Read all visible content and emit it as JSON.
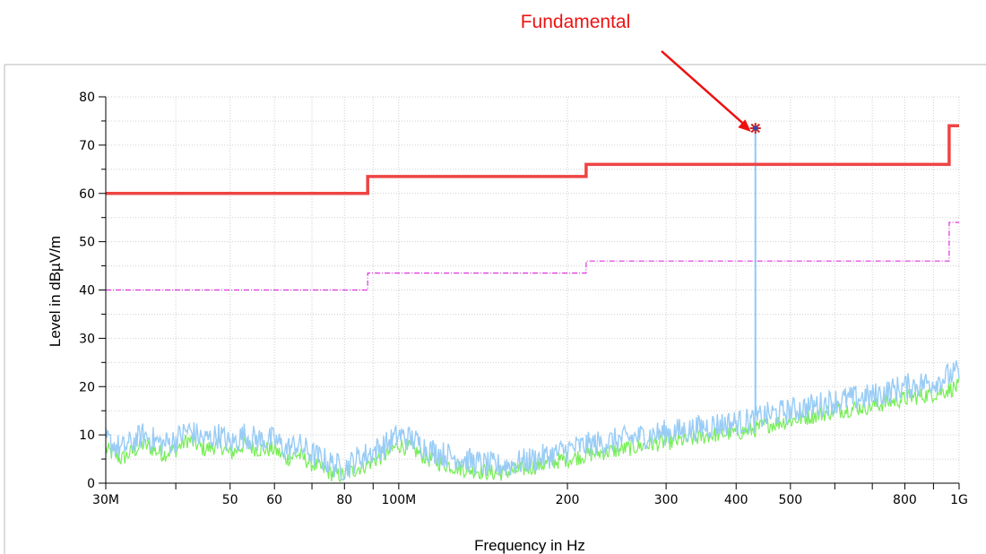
{
  "chart_data": {
    "type": "line",
    "xlabel": "Frequency in Hz",
    "ylabel": "Level in dBµV/m",
    "xscale": "log",
    "xlim": [
      30000000,
      1000000000
    ],
    "ylim": [
      0,
      80
    ],
    "grid": true,
    "y_ticks": [
      0,
      10,
      20,
      30,
      40,
      50,
      60,
      70,
      80
    ],
    "x_ticks": [
      {
        "value": 30000000,
        "label": "30M"
      },
      {
        "value": 50000000,
        "label": "50"
      },
      {
        "value": 60000000,
        "label": "60"
      },
      {
        "value": 80000000,
        "label": "80"
      },
      {
        "value": 100000000,
        "label": "100M"
      },
      {
        "value": 200000000,
        "label": "200"
      },
      {
        "value": 300000000,
        "label": "300"
      },
      {
        "value": 400000000,
        "label": "400"
      },
      {
        "value": 500000000,
        "label": "500"
      },
      {
        "value": 800000000,
        "label": "800"
      },
      {
        "value": 1000000000,
        "label": "1G"
      }
    ],
    "series": [
      {
        "role": "limit",
        "color": "#ee4444",
        "style": "solid-thick",
        "x": [
          30000000,
          88000000,
          88000000,
          216000000,
          216000000,
          960000000,
          960000000,
          1000000000
        ],
        "y": [
          60,
          60,
          63.5,
          63.5,
          66,
          66,
          74,
          74
        ]
      },
      {
        "role": "limit-dashed",
        "color": "#dd33dd",
        "style": "dashdot",
        "x": [
          30000000,
          88000000,
          88000000,
          216000000,
          216000000,
          960000000,
          960000000,
          1000000000
        ],
        "y": [
          40,
          40,
          43.5,
          43.5,
          46,
          46,
          54,
          54
        ]
      },
      {
        "role": "trace-peak",
        "color": "#99ccf5",
        "x": [
          30000000,
          32000000,
          35000000,
          38000000,
          40000000,
          42000000,
          45000000,
          48000000,
          50000000,
          53000000,
          56000000,
          60000000,
          63000000,
          66000000,
          70000000,
          73000000,
          76000000,
          80000000,
          84000000,
          88000000,
          95000000,
          100000000,
          106000000,
          113000000,
          120000000,
          130000000,
          140000000,
          150000000,
          160000000,
          175000000,
          190000000,
          200000000,
          220000000,
          250000000,
          280000000,
          300000000,
          330000000,
          360000000,
          400000000,
          430000000,
          450000000,
          500000000,
          550000000,
          600000000,
          700000000,
          800000000,
          900000000,
          1000000000
        ],
        "y": [
          9,
          7,
          10,
          8,
          9,
          11,
          9,
          10,
          8,
          10,
          9,
          9,
          7,
          8,
          6,
          5,
          4,
          3,
          5,
          6,
          8,
          10,
          9,
          7,
          6,
          5,
          4,
          3.5,
          4,
          5,
          6,
          7,
          8,
          9,
          10,
          10.5,
          11,
          12,
          12.5,
          13,
          14,
          15,
          16,
          17,
          18,
          20,
          21,
          23
        ]
      },
      {
        "role": "trace-average",
        "color": "#77ee55",
        "x": [
          30000000,
          32000000,
          35000000,
          38000000,
          40000000,
          42000000,
          45000000,
          48000000,
          50000000,
          53000000,
          56000000,
          60000000,
          63000000,
          66000000,
          70000000,
          73000000,
          76000000,
          80000000,
          84000000,
          88000000,
          95000000,
          100000000,
          106000000,
          113000000,
          120000000,
          130000000,
          140000000,
          150000000,
          160000000,
          175000000,
          190000000,
          200000000,
          220000000,
          250000000,
          280000000,
          300000000,
          330000000,
          360000000,
          400000000,
          430000000,
          450000000,
          500000000,
          550000000,
          600000000,
          700000000,
          800000000,
          900000000,
          1000000000
        ],
        "y": [
          7,
          5,
          8,
          6,
          7,
          9,
          7,
          8,
          6,
          8,
          7,
          7,
          5,
          6,
          4,
          3,
          2,
          1.5,
          3,
          4,
          6,
          8,
          7,
          5,
          4,
          3,
          2.5,
          2,
          2.5,
          3.5,
          4.5,
          5,
          6,
          7,
          8,
          8.5,
          9,
          10,
          10.5,
          11,
          12,
          13,
          14,
          15,
          16,
          17.5,
          18.5,
          20
        ]
      }
    ],
    "peak": {
      "x": 433000000,
      "y": 73.5,
      "color": "#88ccff",
      "marker_color": "#cc2222"
    },
    "annotations": [
      {
        "text": "Fundamental",
        "color": "#ee1111",
        "target_x": 433000000,
        "target_y": 73.5
      }
    ]
  }
}
